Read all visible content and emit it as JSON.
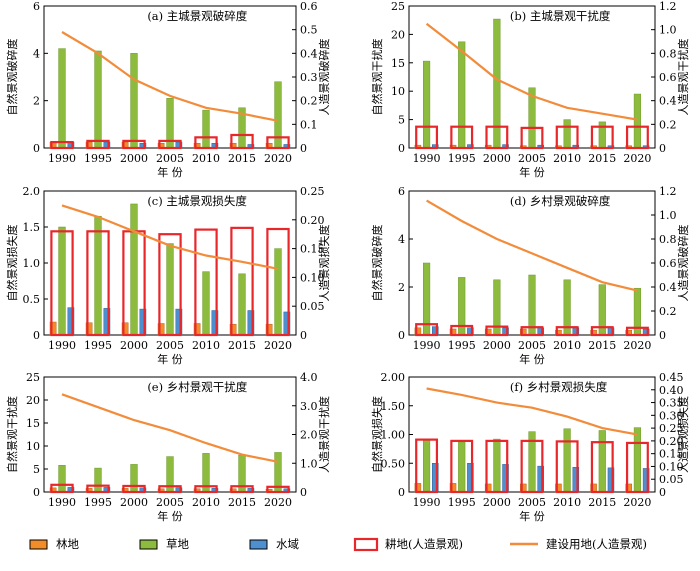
{
  "legend": {
    "items": [
      {
        "label": "林地",
        "key": "forest",
        "kind": "bar",
        "color": "#f28c28"
      },
      {
        "label": "草地",
        "key": "grass",
        "kind": "bar",
        "color": "#8dbb3d"
      },
      {
        "label": "水域",
        "key": "water",
        "kind": "bar",
        "color": "#4e8fd0"
      },
      {
        "label": "耕地(人造景观)",
        "key": "farmland",
        "kind": "outline-bar",
        "color": "#e8272b"
      },
      {
        "label": "建设用地(人造景观)",
        "key": "construction",
        "kind": "line",
        "color": "#f28c3a"
      }
    ]
  },
  "colors": {
    "forest": "#f28c28",
    "grass": "#8dbb3d",
    "water": "#4e8fd0",
    "farmland": "#e8272b",
    "construction": "#f28c3a"
  },
  "chart_data": [
    {
      "id": "a",
      "type": "bar",
      "title": "(a) 主城景观破碎度",
      "categories": [
        "1990",
        "1995",
        "2000",
        "2005",
        "2010",
        "2015",
        "2020"
      ],
      "xlabel": "年 份",
      "ylabel": "自然景观破碎度",
      "ylabel_right": "人造景观破碎度",
      "ylim": [
        0,
        6
      ],
      "yticks": [
        "0",
        "2",
        "4",
        "6"
      ],
      "ylim_right": [
        0,
        0.6
      ],
      "yticks_right": [
        "0",
        "0.1",
        "0.2",
        "0.3",
        "0.4",
        "0.5",
        "0.6"
      ],
      "series": [
        {
          "name": "林地",
          "axis": "left",
          "values": [
            0.25,
            0.25,
            0.25,
            0.2,
            0.2,
            0.2,
            0.2
          ]
        },
        {
          "name": "草地",
          "axis": "left",
          "values": [
            4.2,
            4.1,
            4.0,
            2.1,
            1.6,
            1.7,
            2.8
          ]
        },
        {
          "name": "水域",
          "axis": "left",
          "values": [
            0.25,
            0.25,
            0.2,
            0.25,
            0.2,
            0.15,
            0.15
          ]
        },
        {
          "name": "耕地(人造景观)",
          "axis": "right",
          "values": [
            0.025,
            0.03,
            0.03,
            0.03,
            0.045,
            0.055,
            0.045
          ]
        },
        {
          "name": "建设用地(人造景观)",
          "axis": "right",
          "values": [
            0.49,
            0.4,
            0.29,
            0.22,
            0.17,
            0.145,
            0.115
          ]
        }
      ]
    },
    {
      "id": "b",
      "type": "bar",
      "title": "(b) 主城景观干扰度",
      "categories": [
        "1990",
        "1995",
        "2000",
        "2005",
        "2010",
        "2015",
        "2020"
      ],
      "xlabel": "年 份",
      "ylabel": "自然景观干扰度",
      "ylabel_right": "人造景观干扰度",
      "ylim": [
        0,
        25
      ],
      "yticks": [
        "0",
        "5",
        "10",
        "15",
        "20",
        "25"
      ],
      "ylim_right": [
        0,
        1.2
      ],
      "yticks_right": [
        "0",
        "0.2",
        "0.4",
        "0.6",
        "0.8",
        "1.0",
        "1.2"
      ],
      "series": [
        {
          "name": "林地",
          "axis": "left",
          "values": [
            0.5,
            0.5,
            0.5,
            0.4,
            0.4,
            0.4,
            0.4
          ]
        },
        {
          "name": "草地",
          "axis": "left",
          "values": [
            15.3,
            18.7,
            22.7,
            10.6,
            5.0,
            4.6,
            9.5
          ]
        },
        {
          "name": "水域",
          "axis": "left",
          "values": [
            0.6,
            0.6,
            0.6,
            0.5,
            0.5,
            0.4,
            0.4
          ]
        },
        {
          "name": "耕地(人造景观)",
          "axis": "right",
          "values": [
            0.18,
            0.18,
            0.18,
            0.17,
            0.18,
            0.18,
            0.18
          ]
        },
        {
          "name": "建设用地(人造景观)",
          "axis": "right",
          "values": [
            1.05,
            0.82,
            0.58,
            0.44,
            0.34,
            0.29,
            0.24
          ]
        }
      ]
    },
    {
      "id": "c",
      "type": "bar",
      "title": "(c) 主城景观损失度",
      "categories": [
        "1990",
        "1995",
        "2000",
        "2005",
        "2010",
        "2015",
        "2020"
      ],
      "xlabel": "年 份",
      "ylabel": "自然景观损失度",
      "ylabel_right": "人造景观损失度",
      "ylim": [
        0,
        2.0
      ],
      "yticks": [
        "0",
        "0.5",
        "1.0",
        "1.5",
        "2.0"
      ],
      "ylim_right": [
        0,
        0.25
      ],
      "yticks_right": [
        "0",
        "0.05",
        "0.10",
        "0.15",
        "0.20",
        "0.25"
      ],
      "series": [
        {
          "name": "林地",
          "axis": "left",
          "values": [
            0.18,
            0.17,
            0.17,
            0.16,
            0.16,
            0.15,
            0.15
          ]
        },
        {
          "name": "草地",
          "axis": "left",
          "values": [
            1.5,
            1.65,
            1.82,
            1.27,
            0.88,
            0.85,
            1.2
          ]
        },
        {
          "name": "水域",
          "axis": "left",
          "values": [
            0.38,
            0.37,
            0.36,
            0.36,
            0.34,
            0.34,
            0.32
          ]
        },
        {
          "name": "耕地(人造景观)",
          "axis": "right",
          "values": [
            0.18,
            0.18,
            0.18,
            0.175,
            0.183,
            0.186,
            0.184
          ]
        },
        {
          "name": "建设用地(人造景观)",
          "axis": "right",
          "values": [
            0.225,
            0.205,
            0.18,
            0.155,
            0.138,
            0.127,
            0.115
          ]
        }
      ]
    },
    {
      "id": "d",
      "type": "bar",
      "title": "(d) 乡村景观破碎度",
      "categories": [
        "1990",
        "1995",
        "2000",
        "2005",
        "2010",
        "2015",
        "2020"
      ],
      "xlabel": "年 份",
      "ylabel": "自然景观破碎度",
      "ylabel_right": "人造景观破碎度",
      "ylim": [
        0,
        6
      ],
      "yticks": [
        "0",
        "2",
        "4",
        "6"
      ],
      "ylim_right": [
        0,
        1.2
      ],
      "yticks_right": [
        "0",
        "0.2",
        "0.4",
        "0.6",
        "0.8",
        "1.0",
        "1.2"
      ],
      "series": [
        {
          "name": "林地",
          "axis": "left",
          "values": [
            0.3,
            0.25,
            0.25,
            0.25,
            0.2,
            0.2,
            0.2
          ]
        },
        {
          "name": "草地",
          "axis": "left",
          "values": [
            3.0,
            2.4,
            2.3,
            2.5,
            2.3,
            2.1,
            1.95
          ]
        },
        {
          "name": "水域",
          "axis": "left",
          "values": [
            0.35,
            0.3,
            0.3,
            0.3,
            0.3,
            0.3,
            0.25
          ]
        },
        {
          "name": "耕地(人造景观)",
          "axis": "right",
          "values": [
            0.09,
            0.075,
            0.07,
            0.065,
            0.065,
            0.065,
            0.06
          ]
        },
        {
          "name": "建设用地(人造景观)",
          "axis": "right",
          "values": [
            1.12,
            0.95,
            0.8,
            0.68,
            0.56,
            0.44,
            0.37
          ]
        }
      ]
    },
    {
      "id": "e",
      "type": "bar",
      "title": "(e) 乡村景观干扰度",
      "categories": [
        "1990",
        "1995",
        "2000",
        "2005",
        "2010",
        "2015",
        "2020"
      ],
      "xlabel": "年 份",
      "ylabel": "自然景观干扰度",
      "ylabel_right": "人造景观干扰度",
      "ylim": [
        0,
        25
      ],
      "yticks": [
        "0",
        "5",
        "10",
        "15",
        "20",
        "25"
      ],
      "ylim_right": [
        0,
        4.0
      ],
      "yticks_right": [
        "0",
        "1.0",
        "2.0",
        "3.0",
        "4.0"
      ],
      "series": [
        {
          "name": "林地",
          "axis": "left",
          "values": [
            0.9,
            0.8,
            0.8,
            0.7,
            0.7,
            0.7,
            0.6
          ]
        },
        {
          "name": "草地",
          "axis": "left",
          "values": [
            5.8,
            5.2,
            6.0,
            7.7,
            8.4,
            8.0,
            8.6
          ]
        },
        {
          "name": "水域",
          "axis": "left",
          "values": [
            1.0,
            1.0,
            0.9,
            0.9,
            0.8,
            0.8,
            0.7
          ]
        },
        {
          "name": "耕地(人造景观)",
          "axis": "right",
          "values": [
            0.25,
            0.22,
            0.21,
            0.2,
            0.2,
            0.2,
            0.18
          ]
        },
        {
          "name": "建设用地(人造景观)",
          "axis": "right",
          "values": [
            3.4,
            2.95,
            2.5,
            2.15,
            1.7,
            1.3,
            1.05
          ]
        }
      ]
    },
    {
      "id": "f",
      "type": "bar",
      "title": "(f) 乡村景观损失度",
      "categories": [
        "1990",
        "1995",
        "2000",
        "2005",
        "2010",
        "2015",
        "2020"
      ],
      "xlabel": "年 份",
      "ylabel": "自然景观损失度",
      "ylabel_right": "人造景观损失度",
      "ylim": [
        0,
        2.0
      ],
      "yticks": [
        "0",
        "0.50",
        "1.00",
        "1.50",
        "2.00"
      ],
      "ylim_right": [
        0,
        0.45
      ],
      "yticks_right": [
        "0",
        "0.05",
        "0.10",
        "0.15",
        "0.20",
        "0.25",
        "0.30",
        "0.35",
        "0.40",
        "0.45"
      ],
      "series": [
        {
          "name": "林地",
          "axis": "left",
          "values": [
            0.15,
            0.15,
            0.14,
            0.14,
            0.14,
            0.14,
            0.14
          ]
        },
        {
          "name": "草地",
          "axis": "left",
          "values": [
            0.9,
            0.87,
            0.92,
            1.05,
            1.1,
            1.07,
            1.12
          ]
        },
        {
          "name": "水域",
          "axis": "left",
          "values": [
            0.5,
            0.5,
            0.48,
            0.45,
            0.43,
            0.42,
            0.41
          ]
        },
        {
          "name": "耕地(人造景观)",
          "axis": "right",
          "values": [
            0.205,
            0.2,
            0.2,
            0.2,
            0.198,
            0.195,
            0.192
          ]
        },
        {
          "name": "建设用地(人造景观)",
          "axis": "right",
          "values": [
            0.405,
            0.38,
            0.35,
            0.33,
            0.295,
            0.25,
            0.225
          ]
        }
      ]
    }
  ]
}
